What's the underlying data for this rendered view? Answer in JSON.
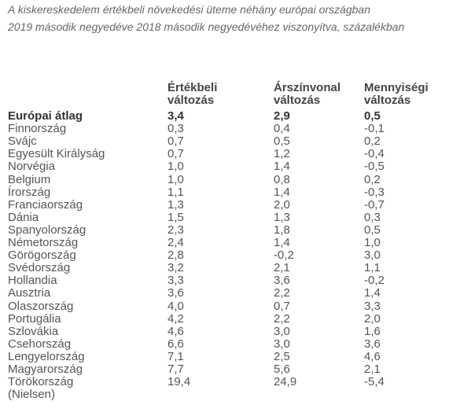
{
  "title": [
    "A kiskereskedelem értékbeli növekedési üteme néhány európai országban",
    "2019 második negyedéve 2018 második negyedévéhez viszonyítva, százalékban"
  ],
  "table": {
    "headers": [
      [
        "Értékbeli",
        "változás"
      ],
      [
        "Árszínvonal",
        "változás"
      ],
      [
        "Mennyiségi",
        "változás"
      ]
    ],
    "rows": [
      [
        "Európai átlag",
        "3,4",
        "2,9",
        "0,5"
      ],
      [
        "Finnország",
        "0,3",
        "0,4",
        "-0,1"
      ],
      [
        "Svájc",
        "0,7",
        "0,5",
        "0,2"
      ],
      [
        "Egyesült Királyság",
        "0,7",
        "1,2",
        "-0,4"
      ],
      [
        "Norvégia",
        "1,0",
        "1,4",
        "-0,5"
      ],
      [
        "Belgium",
        "1,0",
        "0,8",
        "0,2"
      ],
      [
        "Írország",
        "1,1",
        "1,4",
        "-0,3"
      ],
      [
        "Franciaország",
        "1,3",
        "2,0",
        "-0,7"
      ],
      [
        "Dánia",
        "1,5",
        "1,3",
        "0,3"
      ],
      [
        "Spanyolország",
        "2,3",
        "1,8",
        "0,5"
      ],
      [
        "Németország",
        "2,4",
        "1,4",
        "1,0"
      ],
      [
        "Görögország",
        "2,8",
        "-0,2",
        "3,0"
      ],
      [
        "Svédország",
        "3,2",
        "2,1",
        "1,1"
      ],
      [
        "Hollandia",
        "3,3",
        "3,6",
        "-0,2"
      ],
      [
        "Ausztria",
        "3,6",
        "2,2",
        "1,4"
      ],
      [
        "Olaszország",
        "4,0",
        "0,7",
        "3,3"
      ],
      [
        "Portugália",
        "4,2",
        "2,2",
        "2,0"
      ],
      [
        "Szlovákia",
        "4,6",
        "3,0",
        "1,6"
      ],
      [
        "Csehország",
        "6,6",
        "3,0",
        "3,6"
      ],
      [
        "Lengyelország",
        "7,1",
        "2,5",
        "4,6"
      ],
      [
        "Magyarország",
        "7,7",
        "5,6",
        "2,1"
      ],
      [
        "Törökország",
        "19,4",
        "24,9",
        "-5,4"
      ]
    ]
  },
  "source": "(Nielsen)"
}
